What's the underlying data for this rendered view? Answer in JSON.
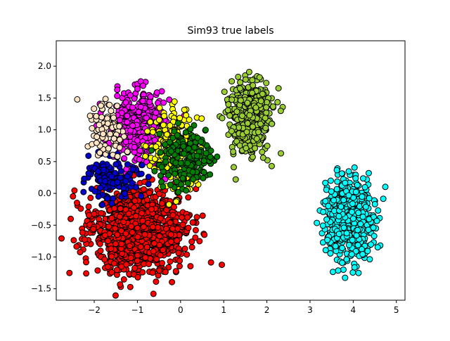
{
  "chart_data": {
    "type": "scatter",
    "title": "Sim93 true labels",
    "xlabel": "",
    "ylabel": "",
    "xlim": [
      -2.88,
      5.2
    ],
    "ylim": [
      -1.68,
      2.4
    ],
    "xticks": [
      -2,
      -1,
      0,
      1,
      2,
      3,
      4,
      5
    ],
    "yticks": [
      -1.5,
      -1.0,
      -0.5,
      0.0,
      0.5,
      1.0,
      1.5,
      2.0
    ],
    "xtick_labels": [
      "−2",
      "−1",
      "0",
      "1",
      "2",
      "3",
      "4",
      "5"
    ],
    "ytick_labels": [
      "−1.5",
      "−1.0",
      "−0.5",
      "0.0",
      "0.5",
      "1.0",
      "1.5",
      "2.0"
    ],
    "grid": false,
    "legend": "none",
    "marker_edge_color": "#000000",
    "clusters": [
      {
        "color": "#ff0000",
        "center": [
          -1.0,
          -0.55
        ],
        "spread": [
          0.55,
          0.32
        ],
        "count": 1200
      },
      {
        "color": "#00ffff",
        "center": [
          3.9,
          -0.38
        ],
        "spread": [
          0.28,
          0.3
        ],
        "count": 600
      },
      {
        "color": "#9acd32",
        "center": [
          1.6,
          1.22
        ],
        "spread": [
          0.24,
          0.28
        ],
        "count": 500
      },
      {
        "color": "#ff00ff",
        "center": [
          -0.95,
          1.05
        ],
        "spread": [
          0.32,
          0.26
        ],
        "count": 450
      },
      {
        "color": "#ffff00",
        "center": [
          -0.15,
          0.65
        ],
        "spread": [
          0.3,
          0.3
        ],
        "count": 220
      },
      {
        "color": "#007f00",
        "center": [
          0.15,
          0.55
        ],
        "spread": [
          0.28,
          0.22
        ],
        "count": 200
      },
      {
        "color": "#0000cd",
        "center": [
          -1.6,
          0.25
        ],
        "spread": [
          0.3,
          0.16
        ],
        "count": 150
      },
      {
        "color": "#ffe4c4",
        "center": [
          -1.75,
          1.0
        ],
        "spread": [
          0.22,
          0.22
        ],
        "count": 80
      }
    ]
  }
}
